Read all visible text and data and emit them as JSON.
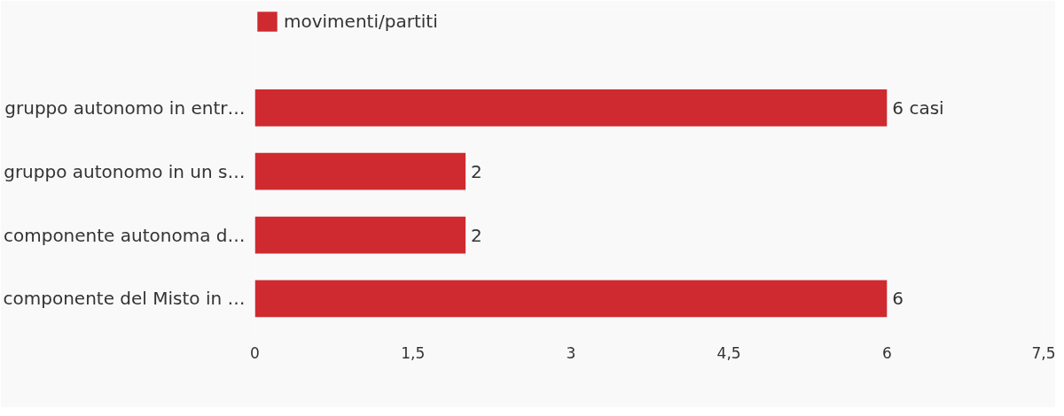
{
  "chart_data": {
    "type": "bar",
    "orientation": "horizontal",
    "categories": [
      "gruppo autonomo in entr…",
      "gruppo autonomo in un s…",
      "componente autonoma d…",
      "componente del Misto in …"
    ],
    "series": [
      {
        "name": "movimenti/partiti",
        "color": "#cf2a30",
        "values": [
          6,
          2,
          2,
          6
        ],
        "value_labels": [
          "6 casi",
          "2",
          "2",
          "6"
        ]
      }
    ],
    "xlim": [
      0,
      7.5
    ],
    "xticks": [
      0,
      {
        "value": 1.5,
        "label": "1,5"
      },
      3,
      {
        "value": 4.5,
        "label": "4,5"
      },
      6,
      {
        "value": 7.5,
        "label": "7,5"
      }
    ],
    "grid": false,
    "legend": "top left"
  }
}
